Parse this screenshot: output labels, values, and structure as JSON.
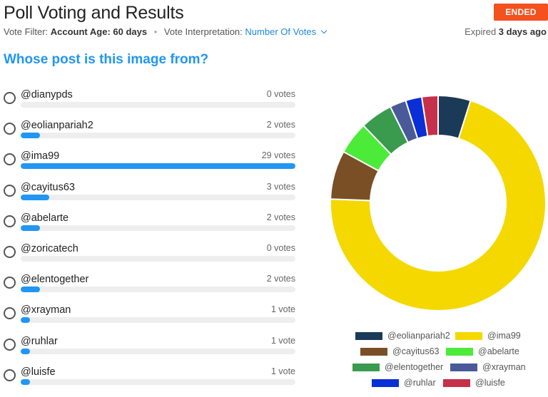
{
  "header": {
    "title": "Poll Voting and Results",
    "status": "ENDED",
    "filter_label": "Vote Filter:",
    "filter_value": "Account Age: 60 days",
    "interp_label": "Vote Interpretation:",
    "interp_value": "Number Of Votes",
    "expired_prefix": "Expired",
    "expired_value": "3 days ago"
  },
  "question": "Whose post is this image from?",
  "options": [
    {
      "label": "@dianypds",
      "votes_text": "0 votes",
      "votes": 0
    },
    {
      "label": "@eolianpariah2",
      "votes_text": "2 votes",
      "votes": 2
    },
    {
      "label": "@ima99",
      "votes_text": "29 votes",
      "votes": 29
    },
    {
      "label": "@cayitus63",
      "votes_text": "3 votes",
      "votes": 3
    },
    {
      "label": "@abelarte",
      "votes_text": "2 votes",
      "votes": 2
    },
    {
      "label": "@zoricatech",
      "votes_text": "0 votes",
      "votes": 0
    },
    {
      "label": "@elentogether",
      "votes_text": "2 votes",
      "votes": 2
    },
    {
      "label": "@xrayman",
      "votes_text": "1 vote",
      "votes": 1
    },
    {
      "label": "@ruhlar",
      "votes_text": "1 vote",
      "votes": 1
    },
    {
      "label": "@luisfe",
      "votes_text": "1 vote",
      "votes": 1
    }
  ],
  "chart_data": {
    "type": "pie",
    "donut": true,
    "legend_position": "bottom",
    "slices": [
      {
        "name": "@eolianpariah2",
        "value": 2,
        "color": "#1b3a57"
      },
      {
        "name": "@ima99",
        "value": 29,
        "color": "#f5d800"
      },
      {
        "name": "@cayitus63",
        "value": 3,
        "color": "#7a4f26"
      },
      {
        "name": "@abelarte",
        "value": 2,
        "color": "#4ceb3a"
      },
      {
        "name": "@elentogether",
        "value": 2,
        "color": "#3a9a4e"
      },
      {
        "name": "@xrayman",
        "value": 1,
        "color": "#4a5a99"
      },
      {
        "name": "@ruhlar",
        "value": 1,
        "color": "#0a2fd6"
      },
      {
        "name": "@luisfe",
        "value": 1,
        "color": "#c7304a"
      }
    ]
  },
  "colors": {
    "accent": "#2196f3",
    "badge": "#f4511e",
    "bar_track": "#eeeeee"
  }
}
